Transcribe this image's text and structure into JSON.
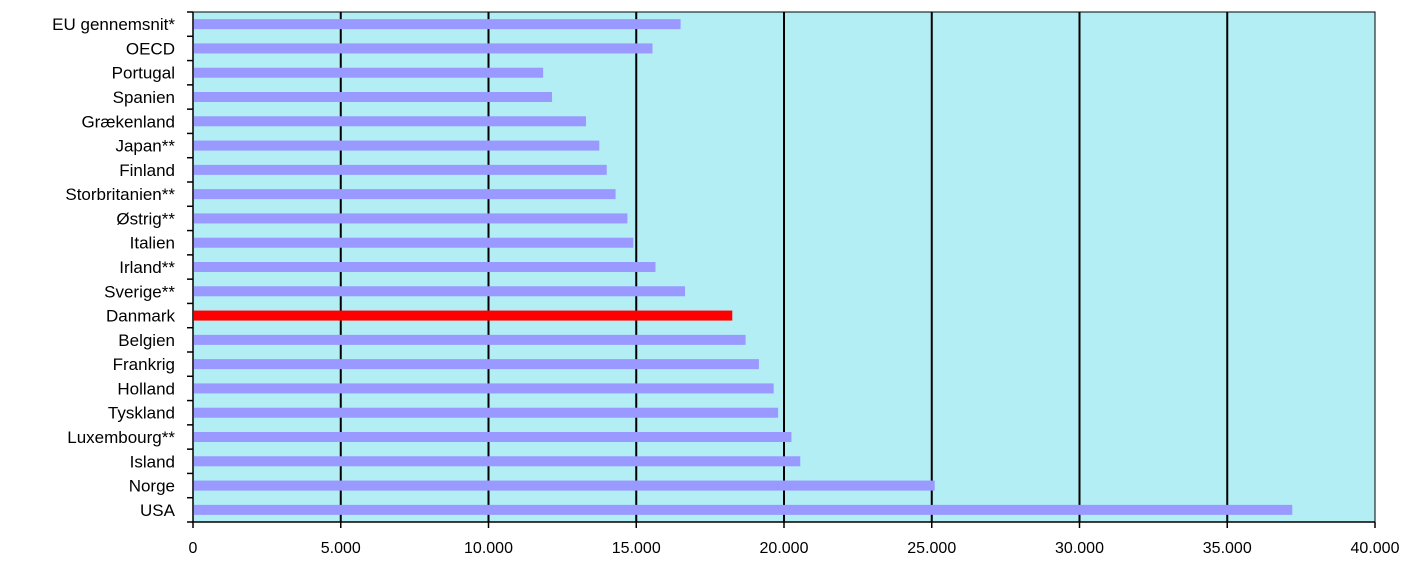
{
  "colors": {
    "plot_background": "#b3eef5",
    "bar": "#9999ff",
    "highlight_bar": "#ff0000",
    "gridline": "#000000"
  },
  "chart_data": {
    "type": "bar",
    "orientation": "horizontal",
    "title": "",
    "xlabel": "",
    "ylabel": "",
    "xlim": [
      0,
      40000
    ],
    "grid": true,
    "categories": [
      "EU gennemsnit*",
      "OECD",
      "Portugal",
      "Spanien",
      "Grækenland",
      "Japan**",
      "Finland",
      "Storbritanien**",
      "Østrig**",
      "Italien",
      "Irland**",
      "Sverige**",
      "Danmark",
      "Belgien",
      "Frankrig",
      "Holland",
      "Tyskland",
      "Luxembourg**",
      "Island",
      "Norge",
      "USA"
    ],
    "values": [
      16500,
      15550,
      11850,
      12150,
      13300,
      13750,
      14000,
      14300,
      14700,
      14900,
      15650,
      16650,
      18250,
      18700,
      19150,
      19650,
      19800,
      20250,
      20550,
      25100,
      37200
    ],
    "highlight": "Danmark",
    "tick_values": [
      0,
      5000,
      10000,
      15000,
      20000,
      25000,
      30000,
      35000,
      40000
    ],
    "tick_labels": [
      "0",
      "5.000",
      "10.000",
      "15.000",
      "20.000",
      "25.000",
      "30.000",
      "35.000",
      "40.000"
    ]
  }
}
